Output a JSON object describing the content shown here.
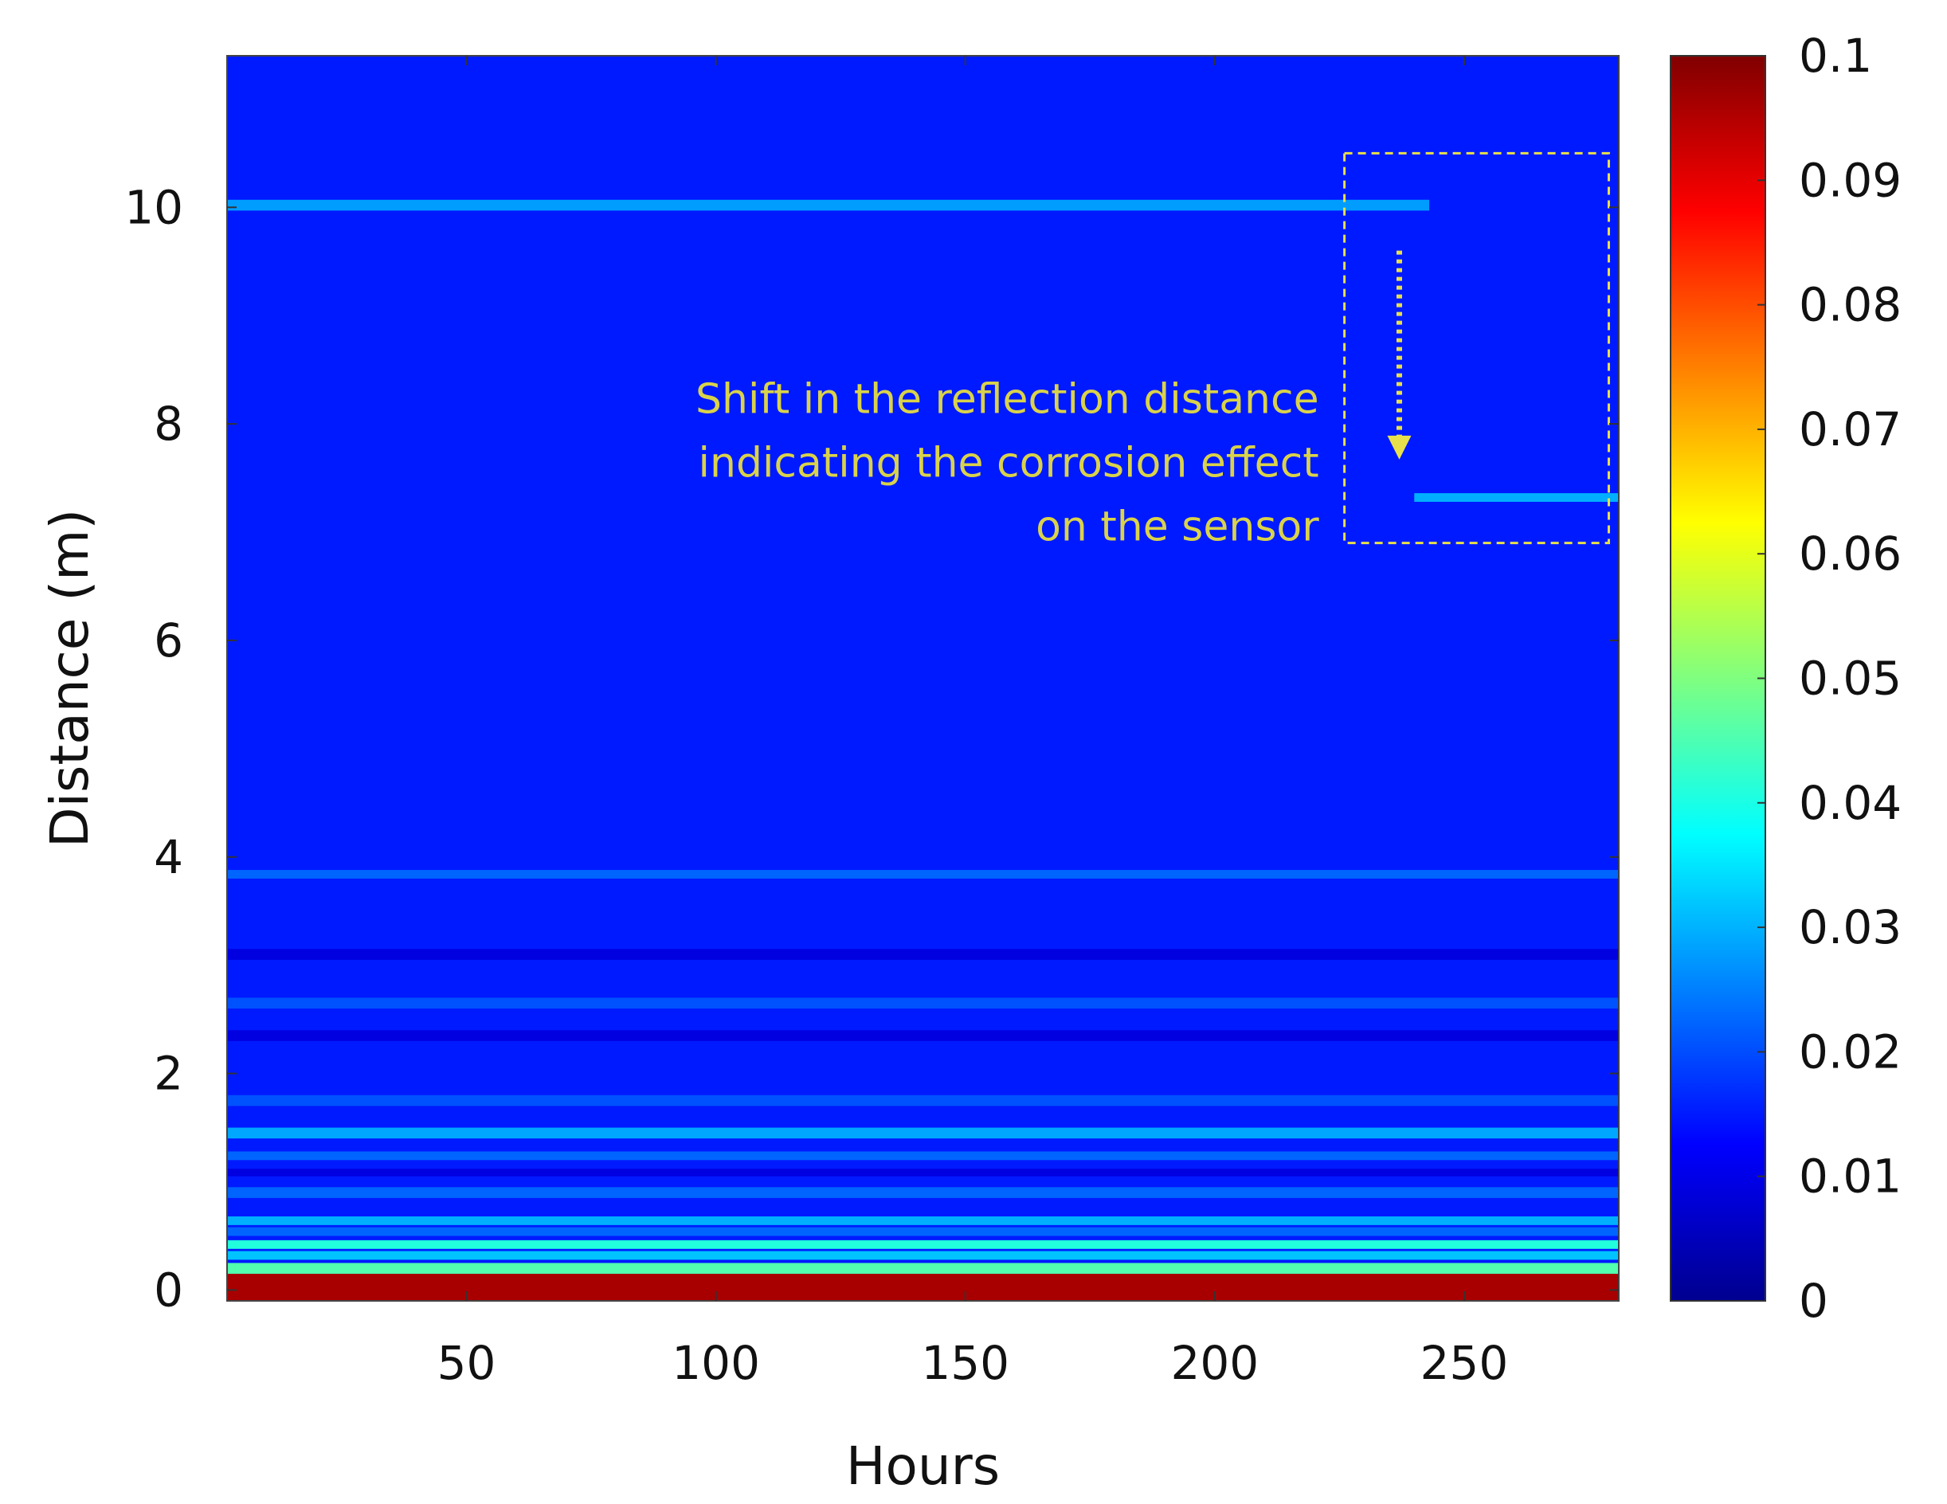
{
  "chart_data": {
    "type": "heatmap",
    "xlabel": "Hours",
    "ylabel": "Distance (m)",
    "xlim": [
      2,
      281
    ],
    "ylim": [
      -0.1,
      11.4
    ],
    "x_ticks": [
      50,
      100,
      150,
      200,
      250
    ],
    "y_ticks": [
      0,
      2,
      4,
      6,
      8,
      10
    ],
    "colorbar": {
      "range": [
        0,
        0.1
      ],
      "ticks": [
        0,
        0.01,
        0.02,
        0.03,
        0.04,
        0.05,
        0.06,
        0.07,
        0.08,
        0.09,
        0.1
      ],
      "tick_labels": [
        "0",
        "0.01",
        "0.02",
        "0.03",
        "0.04",
        "0.05",
        "0.06",
        "0.07",
        "0.08",
        "0.09",
        "0.1"
      ],
      "colormap": "jet"
    },
    "background_value": 0.012,
    "bands": [
      {
        "y_from": -0.1,
        "y_to": 0.15,
        "x_from": 2,
        "x_to": 281,
        "value": 0.1
      },
      {
        "y_from": 0.15,
        "y_to": 0.25,
        "x_from": 2,
        "x_to": 281,
        "value": 0.045
      },
      {
        "y_from": 0.28,
        "y_to": 0.36,
        "x_from": 2,
        "x_to": 281,
        "value": 0.03
      },
      {
        "y_from": 0.38,
        "y_to": 0.46,
        "x_from": 2,
        "x_to": 281,
        "value": 0.04
      },
      {
        "y_from": 0.5,
        "y_to": 0.58,
        "x_from": 2,
        "x_to": 281,
        "value": 0.02
      },
      {
        "y_from": 0.6,
        "y_to": 0.68,
        "x_from": 2,
        "x_to": 281,
        "value": 0.028
      },
      {
        "y_from": 0.85,
        "y_to": 0.95,
        "x_from": 2,
        "x_to": 281,
        "value": 0.02
      },
      {
        "y_from": 1.05,
        "y_to": 1.12,
        "x_from": 2,
        "x_to": 281,
        "value": 0.006
      },
      {
        "y_from": 1.2,
        "y_to": 1.28,
        "x_from": 2,
        "x_to": 281,
        "value": 0.02
      },
      {
        "y_from": 1.4,
        "y_to": 1.5,
        "x_from": 2,
        "x_to": 281,
        "value": 0.027
      },
      {
        "y_from": 1.7,
        "y_to": 1.8,
        "x_from": 2,
        "x_to": 281,
        "value": 0.018
      },
      {
        "y_from": 2.3,
        "y_to": 2.4,
        "x_from": 2,
        "x_to": 281,
        "value": 0.006
      },
      {
        "y_from": 2.6,
        "y_to": 2.7,
        "x_from": 2,
        "x_to": 281,
        "value": 0.018
      },
      {
        "y_from": 3.05,
        "y_to": 3.15,
        "x_from": 2,
        "x_to": 281,
        "value": 0.006
      },
      {
        "y_from": 3.8,
        "y_to": 3.88,
        "x_from": 2,
        "x_to": 281,
        "value": 0.02
      },
      {
        "y_from": 9.97,
        "y_to": 10.07,
        "x_from": 2,
        "x_to": 243,
        "value": 0.026
      },
      {
        "y_from": 7.28,
        "y_to": 7.36,
        "x_from": 240,
        "x_to": 281,
        "value": 0.028
      }
    ],
    "annotation": {
      "lines": [
        "Shift in the reflection distance",
        "indicating the corrosion effect",
        "on the sensor"
      ],
      "box": {
        "x_from": 226,
        "x_to": 279,
        "y_from": 6.9,
        "y_to": 10.5
      },
      "arrow": {
        "x": 237,
        "y_from": 9.6,
        "y_to": 7.7
      },
      "color": "#e8e04a"
    }
  }
}
